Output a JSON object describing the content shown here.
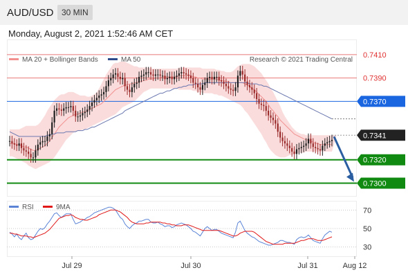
{
  "header": {
    "pair": "AUD/USD",
    "timeframe": "30 MIN"
  },
  "datetime": "Monday, August 2, 2021 1:52:46 AM CET",
  "legend": {
    "ma20": "MA 20 + Bollinger Bands",
    "ma50": "MA 50",
    "credit": "Research © 2021 Trading Central"
  },
  "rsi_legend": {
    "rsi": "RSI",
    "ma9": "9MA"
  },
  "colors": {
    "up": "#1f1f1f",
    "down": "#9a2a2a",
    "bands": "#fadcdc",
    "ma20": "#f29090",
    "ma50": "#6b78b0",
    "resistance": "#e87878",
    "pivot": "#1a66e0",
    "support": "#118a11",
    "current": "#222222",
    "arrow": "#2b5ea0",
    "rsi": "#5b84d6",
    "rsi_ma": "#e01818"
  },
  "chart_data": [
    {
      "type": "candlestick",
      "ylim": [
        0.7289,
        0.7423
      ],
      "x_ticks": [
        "Jul 29",
        "Jul 30",
        "Jul 31",
        "Aug 12"
      ],
      "price_levels": [
        {
          "label": "0.7410",
          "value": 0.741,
          "role": "resistance"
        },
        {
          "label": "0.7390",
          "value": 0.739,
          "role": "resistance"
        },
        {
          "label": "0.7370",
          "value": 0.737,
          "role": "pivot"
        },
        {
          "label": "0.7341",
          "value": 0.7341,
          "role": "current"
        },
        {
          "label": "0.7320",
          "value": 0.732,
          "role": "support"
        },
        {
          "label": "0.7300",
          "value": 0.73,
          "role": "support"
        }
      ],
      "close": [
        0.7336,
        0.7334,
        0.7333,
        0.7332,
        0.7334,
        0.733,
        0.7328,
        0.7327,
        0.7325,
        0.7322,
        0.7322,
        0.7328,
        0.7333,
        0.7335,
        0.7336,
        0.7336,
        0.734,
        0.7342,
        0.7352,
        0.7362,
        0.7364,
        0.7363,
        0.7362,
        0.7364,
        0.7365,
        0.7365,
        0.7366,
        0.7362,
        0.7357,
        0.7357,
        0.7358,
        0.736,
        0.7361,
        0.7363,
        0.7366,
        0.7369,
        0.7371,
        0.7373,
        0.7375,
        0.7376,
        0.7378,
        0.7383,
        0.7388,
        0.739,
        0.7393,
        0.7394,
        0.7391,
        0.7389,
        0.739,
        0.7383,
        0.738,
        0.7378,
        0.7382,
        0.7385,
        0.7386,
        0.7391,
        0.7392,
        0.7393,
        0.7395,
        0.7395,
        0.7393,
        0.7392,
        0.7393,
        0.7393,
        0.7392,
        0.7392,
        0.7389,
        0.739,
        0.7391,
        0.7389,
        0.7391,
        0.7392,
        0.7394,
        0.7395,
        0.7394,
        0.7393,
        0.7392,
        0.739,
        0.7386,
        0.7385,
        0.7382,
        0.738,
        0.7384,
        0.7386,
        0.739,
        0.7391,
        0.7389,
        0.7391,
        0.7391,
        0.7388,
        0.7387,
        0.7385,
        0.7383,
        0.7381,
        0.738,
        0.7379,
        0.7382,
        0.7392,
        0.7396,
        0.7393,
        0.7387,
        0.7384,
        0.7382,
        0.738,
        0.7377,
        0.7372,
        0.7368,
        0.7367,
        0.7366,
        0.7362,
        0.7358,
        0.7356,
        0.7354,
        0.7351,
        0.7344,
        0.7339,
        0.7336,
        0.7334,
        0.7332,
        0.733,
        0.7327,
        0.7325,
        0.7329,
        0.733,
        0.7331,
        0.7332,
        0.7334,
        0.7338,
        0.7334,
        0.7331,
        0.733,
        0.7329,
        0.7328,
        0.7332,
        0.7334,
        0.7335,
        0.7336,
        0.7337
      ],
      "ma20": [
        0.7334,
        0.7334,
        0.7334,
        0.7333,
        0.7333,
        0.7332,
        0.7331,
        0.7331,
        0.733,
        0.7329,
        0.7328,
        0.7328,
        0.7329,
        0.733,
        0.7331,
        0.7332,
        0.7334,
        0.7336,
        0.7339,
        0.7342,
        0.7345,
        0.7348,
        0.735,
        0.7352,
        0.7354,
        0.7356,
        0.7357,
        0.7358,
        0.7359,
        0.7359,
        0.736,
        0.7361,
        0.7361,
        0.7362,
        0.7363,
        0.7364,
        0.7365,
        0.7366,
        0.7367,
        0.7368,
        0.737,
        0.7372,
        0.7374,
        0.7376,
        0.7378,
        0.738,
        0.7381,
        0.7382,
        0.7383,
        0.7384,
        0.7384,
        0.7385,
        0.7385,
        0.7386,
        0.7386,
        0.7387,
        0.7387,
        0.7388,
        0.7388,
        0.7389,
        0.7389,
        0.7389,
        0.739,
        0.739,
        0.739,
        0.7391,
        0.7391,
        0.7391,
        0.7391,
        0.7391,
        0.7391,
        0.7391,
        0.7392,
        0.7392,
        0.7392,
        0.7392,
        0.7392,
        0.7392,
        0.7391,
        0.7391,
        0.739,
        0.739,
        0.7389,
        0.7389,
        0.7389,
        0.7389,
        0.7389,
        0.7389,
        0.7389,
        0.7388,
        0.7388,
        0.7388,
        0.7387,
        0.7387,
        0.7386,
        0.7386,
        0.7386,
        0.7386,
        0.7386,
        0.7386,
        0.7385,
        0.7384,
        0.7383,
        0.7381,
        0.738,
        0.7378,
        0.7376,
        0.7374,
        0.7372,
        0.737,
        0.7367,
        0.7364,
        0.7362,
        0.7359,
        0.7357,
        0.7354,
        0.7352,
        0.735,
        0.7348,
        0.7346,
        0.7344,
        0.7342,
        0.7341,
        0.734,
        0.7339,
        0.7338,
        0.7337,
        0.7337,
        0.7336,
        0.7335,
        0.7334,
        0.7334,
        0.7333,
        0.7333,
        0.7333,
        0.7333,
        0.7333,
        0.7333
      ],
      "bb_upper": [
        0.7346,
        0.7346,
        0.7346,
        0.7346,
        0.7346,
        0.7347,
        0.7348,
        0.7349,
        0.7349,
        0.7349,
        0.7349,
        0.7349,
        0.735,
        0.7352,
        0.7355,
        0.7358,
        0.7362,
        0.7365,
        0.7368,
        0.7371,
        0.7373,
        0.7375,
        0.7376,
        0.7376,
        0.7377,
        0.7378,
        0.7378,
        0.7378,
        0.7377,
        0.7376,
        0.7375,
        0.7375,
        0.7375,
        0.7374,
        0.7374,
        0.7375,
        0.7376,
        0.7378,
        0.7381,
        0.7385,
        0.7389,
        0.7393,
        0.7396,
        0.7399,
        0.7402,
        0.7403,
        0.7403,
        0.7404,
        0.7404,
        0.7404,
        0.7403,
        0.7402,
        0.7401,
        0.74,
        0.74,
        0.7399,
        0.7399,
        0.7399,
        0.7399,
        0.7399,
        0.7398,
        0.7398,
        0.7398,
        0.7398,
        0.7398,
        0.7398,
        0.7398,
        0.7398,
        0.7398,
        0.7398,
        0.7398,
        0.7398,
        0.7399,
        0.7399,
        0.7399,
        0.7399,
        0.7399,
        0.7399,
        0.7399,
        0.7399,
        0.7399,
        0.7399,
        0.7398,
        0.7398,
        0.7398,
        0.7398,
        0.7398,
        0.7398,
        0.7397,
        0.7397,
        0.7396,
        0.7396,
        0.7395,
        0.7395,
        0.7395,
        0.7396,
        0.7398,
        0.74,
        0.7401,
        0.7402,
        0.7402,
        0.7402,
        0.7402,
        0.7401,
        0.74,
        0.7398,
        0.7396,
        0.7394,
        0.7391,
        0.7388,
        0.7385,
        0.7381,
        0.7378,
        0.7374,
        0.737,
        0.7366,
        0.7361,
        0.7357,
        0.7354,
        0.7351,
        0.7348,
        0.7346,
        0.7344,
        0.7343,
        0.7342,
        0.7342,
        0.7341,
        0.7341,
        0.7341,
        0.7341,
        0.7341,
        0.7341,
        0.7341,
        0.7341,
        0.7341,
        0.7341,
        0.7341,
        0.7341,
        0.7341,
        0.7341
      ],
      "bb_lower": [
        0.7323,
        0.7323,
        0.7322,
        0.7321,
        0.732,
        0.7319,
        0.7318,
        0.7317,
        0.7315,
        0.7314,
        0.7313,
        0.7312,
        0.7313,
        0.7314,
        0.7315,
        0.7316,
        0.7317,
        0.7318,
        0.732,
        0.7322,
        0.7325,
        0.7328,
        0.7331,
        0.7334,
        0.7337,
        0.7339,
        0.7341,
        0.7343,
        0.7344,
        0.7345,
        0.7345,
        0.7346,
        0.7346,
        0.7347,
        0.7348,
        0.7349,
        0.735,
        0.7351,
        0.7352,
        0.7353,
        0.7354,
        0.7355,
        0.7356,
        0.7357,
        0.7358,
        0.7359,
        0.7361,
        0.7363,
        0.7365,
        0.7366,
        0.7367,
        0.7368,
        0.7369,
        0.737,
        0.7372,
        0.7374,
        0.7376,
        0.7378,
        0.7379,
        0.738,
        0.7381,
        0.7381,
        0.7381,
        0.7381,
        0.7381,
        0.7381,
        0.7381,
        0.7381,
        0.7381,
        0.7381,
        0.7381,
        0.7381,
        0.738,
        0.738,
        0.738,
        0.738,
        0.738,
        0.738,
        0.7379,
        0.7379,
        0.7378,
        0.7378,
        0.7377,
        0.7377,
        0.7377,
        0.7377,
        0.7377,
        0.7376,
        0.7376,
        0.7375,
        0.7375,
        0.7374,
        0.7373,
        0.7372,
        0.7371,
        0.737,
        0.7369,
        0.7368,
        0.7367,
        0.7365,
        0.7362,
        0.736,
        0.7357,
        0.7354,
        0.7351,
        0.7348,
        0.7345,
        0.7342,
        0.7338,
        0.7335,
        0.7331,
        0.7328,
        0.7326,
        0.7324,
        0.7323,
        0.7322,
        0.7322,
        0.7322,
        0.7323,
        0.7324,
        0.7324,
        0.7325,
        0.7325,
        0.7326,
        0.7326,
        0.7326,
        0.7327,
        0.7327,
        0.7327,
        0.7327,
        0.7327,
        0.7327,
        0.7327,
        0.7327,
        0.7327,
        0.7327,
        0.7327,
        0.7327
      ],
      "ma50": [
        0.7344,
        0.7343,
        0.7342,
        0.7341,
        0.734,
        0.734,
        0.734,
        0.734,
        0.734,
        0.734,
        0.734,
        0.734,
        0.734,
        0.734,
        0.734,
        0.734,
        0.7341,
        0.7341,
        0.7342,
        0.7342,
        0.7343,
        0.7343,
        0.7343,
        0.7343,
        0.7344,
        0.7344,
        0.7344,
        0.7344,
        0.7344,
        0.7345,
        0.7345,
        0.7345,
        0.7346,
        0.7346,
        0.7347,
        0.7348,
        0.7348,
        0.7349,
        0.735,
        0.7351,
        0.7352,
        0.7353,
        0.7354,
        0.7355,
        0.7356,
        0.7357,
        0.7358,
        0.7359,
        0.736,
        0.7362,
        0.7363,
        0.7364,
        0.7365,
        0.7366,
        0.7367,
        0.7368,
        0.7369,
        0.737,
        0.7371,
        0.7372,
        0.7373,
        0.7374,
        0.7375,
        0.7376,
        0.7377,
        0.7377,
        0.7378,
        0.7379,
        0.7379,
        0.738,
        0.7381,
        0.7381,
        0.7382,
        0.7382,
        0.7383,
        0.7383,
        0.7384,
        0.7384,
        0.7384,
        0.7385,
        0.7385,
        0.7385,
        0.7385,
        0.7386,
        0.7386,
        0.7386,
        0.7386,
        0.7386,
        0.7386,
        0.7386,
        0.7386,
        0.7386,
        0.7386,
        0.7386,
        0.7386,
        0.7386,
        0.7386,
        0.7386,
        0.7386,
        0.7386,
        0.7386,
        0.7386,
        0.7385,
        0.7385,
        0.7385,
        0.7385,
        0.7384,
        0.7384,
        0.7383,
        0.7383,
        0.7382,
        0.7381,
        0.738,
        0.7379,
        0.7378,
        0.7377,
        0.7376,
        0.7375,
        0.7374,
        0.7373,
        0.7372,
        0.7371,
        0.737,
        0.7369,
        0.7368,
        0.7367,
        0.7366,
        0.7365,
        0.7364,
        0.7363,
        0.7362,
        0.7361,
        0.736,
        0.7359,
        0.7358,
        0.7357,
        0.7356,
        0.7355
      ],
      "ma50_projection": [
        0.7355,
        0.7355
      ],
      "forecast_arrow": {
        "from": 0.7341,
        "to": 0.73
      }
    },
    {
      "type": "line",
      "title": "RSI",
      "ylim": [
        20,
        80
      ],
      "y_ticks": [
        70,
        50,
        30
      ],
      "series": [
        {
          "name": "RSI",
          "values": [
            46,
            44,
            41,
            44,
            40,
            38,
            42,
            45,
            40,
            38,
            39,
            43,
            47,
            50,
            49,
            51,
            55,
            58,
            62,
            66,
            67,
            64,
            62,
            64,
            66,
            66,
            66,
            60,
            55,
            56,
            57,
            59,
            60,
            62,
            63,
            65,
            67,
            68,
            69,
            70,
            71,
            72,
            73,
            73,
            72,
            70,
            66,
            62,
            60,
            55,
            52,
            50,
            53,
            55,
            56,
            58,
            58,
            59,
            60,
            60,
            57,
            56,
            56,
            57,
            55,
            54,
            52,
            53,
            53,
            51,
            52,
            54,
            55,
            56,
            55,
            54,
            52,
            50,
            47,
            46,
            44,
            42,
            46,
            50,
            52,
            50,
            48,
            49,
            49,
            47,
            45,
            44,
            43,
            42,
            41,
            40,
            46,
            56,
            58,
            53,
            48,
            45,
            43,
            41,
            40,
            38,
            36,
            35,
            34,
            33,
            32,
            32,
            33,
            34,
            35,
            37,
            37,
            36,
            35,
            35,
            34,
            33,
            38,
            40,
            41,
            40,
            41,
            43,
            40,
            37,
            36,
            35,
            34,
            39,
            43,
            45,
            47,
            46
          ]
        },
        {
          "name": "9MA",
          "values": [
            45,
            45,
            44,
            44,
            43,
            42,
            42,
            42,
            41,
            41,
            40,
            41,
            42,
            43,
            44,
            45,
            47,
            49,
            52,
            55,
            58,
            61,
            62,
            63,
            64,
            64,
            65,
            64,
            62,
            61,
            60,
            60,
            59,
            59,
            60,
            61,
            62,
            63,
            65,
            66,
            67,
            68,
            69,
            70,
            70,
            70,
            69,
            68,
            66,
            64,
            62,
            59,
            57,
            56,
            55,
            55,
            55,
            55,
            56,
            56,
            57,
            57,
            57,
            57,
            57,
            56,
            56,
            55,
            55,
            54,
            54,
            53,
            53,
            53,
            54,
            54,
            54,
            53,
            52,
            51,
            50,
            49,
            48,
            48,
            48,
            48,
            48,
            48,
            48,
            48,
            47,
            46,
            45,
            44,
            43,
            42,
            42,
            43,
            45,
            46,
            47,
            47,
            47,
            47,
            46,
            44,
            42,
            40,
            38,
            36,
            35,
            34,
            33,
            33,
            33,
            33,
            33,
            34,
            34,
            34,
            34,
            34,
            35,
            36,
            37,
            37,
            38,
            39,
            39,
            39,
            38,
            37,
            37,
            37,
            38,
            39,
            40,
            41
          ]
        }
      ],
      "x_ticks": [
        "Jul 29",
        "Jul 30",
        "Jul 31",
        "Aug 12"
      ]
    }
  ]
}
